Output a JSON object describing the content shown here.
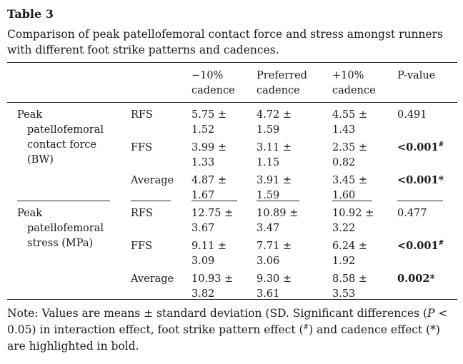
{
  "table_label": "Table 3",
  "caption": "Comparison of peak patellofemoral contact force and stress amongst runners with different foot strike patterns and cadences.",
  "headers": {
    "col1": [
      "−10%",
      "cadence"
    ],
    "col2": [
      "Preferred",
      "cadence"
    ],
    "col3": [
      "+10%",
      "cadence"
    ],
    "p": "P-value"
  },
  "groups": [
    {
      "name": [
        "Peak",
        "patellofemoral",
        "contact force",
        "(BW)"
      ],
      "rows": [
        {
          "cond": "RFS",
          "c1": [
            "5.75 ±",
            "1.52"
          ],
          "c2": [
            "4.72 ±",
            "1.59"
          ],
          "c3": [
            "4.55 ±",
            "1.43"
          ],
          "p": "0.491",
          "p_sup": "",
          "bold": false
        },
        {
          "cond": "FFS",
          "c1": [
            "3.99 ±",
            "1.33"
          ],
          "c2": [
            "3.11 ±",
            "1.15"
          ],
          "c3": [
            "2.35 ±",
            "0.82"
          ],
          "p": "<0.001",
          "p_sup": "#",
          "bold": true
        },
        {
          "cond": "Average",
          "c1": [
            "4.87 ±",
            "1.67"
          ],
          "c2": [
            "3.91 ±",
            "1.59"
          ],
          "c3": [
            "3.45 ±",
            "1.60"
          ],
          "p": "<0.001*",
          "p_sup": "",
          "bold": true
        }
      ]
    },
    {
      "name": [
        "Peak",
        "patellofemoral",
        "stress (MPa)"
      ],
      "rows": [
        {
          "cond": "RFS",
          "c1": [
            "12.75 ±",
            "3.67"
          ],
          "c2": [
            "10.89 ±",
            "3.47"
          ],
          "c3": [
            "10.92 ±",
            "3.22"
          ],
          "p": "0.477",
          "p_sup": "",
          "bold": false
        },
        {
          "cond": "FFS",
          "c1": [
            "9.11 ±",
            "3.09"
          ],
          "c2": [
            "7.71 ±",
            "3.06"
          ],
          "c3": [
            "6.24 ±",
            "1.92"
          ],
          "p": "<0.001",
          "p_sup": "#",
          "bold": true
        },
        {
          "cond": "Average",
          "c1": [
            "10.93 ±",
            "3.82"
          ],
          "c2": [
            "9.30 ±",
            "3.61"
          ],
          "c3": [
            "8.58 ±",
            "3.53"
          ],
          "p": "0.002*",
          "p_sup": "",
          "bold": true
        }
      ]
    }
  ],
  "footnote": {
    "part1": "Note: Values are means ± standard deviation (SD. Significant differences (",
    "p_symbol": "P",
    "part2": " < 0.05) in interaction effect, foot strike pattern effect (",
    "sup_hash": "#",
    "part3": ") and cadence effect (*) are highlighted in bold."
  }
}
